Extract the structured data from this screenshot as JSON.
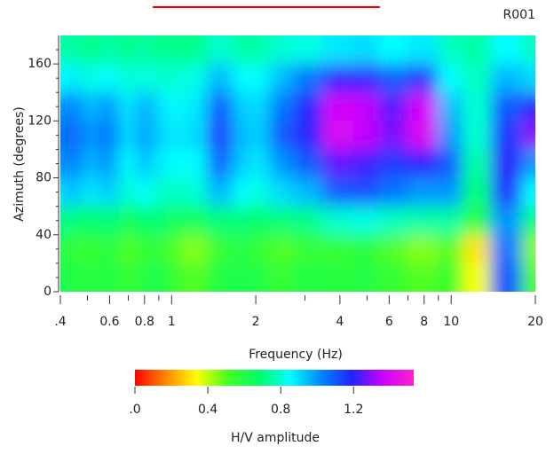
{
  "chart_data": {
    "type": "heatmap",
    "tag": "R001",
    "xlabel": "Frequency (Hz)",
    "ylabel": "Azimuth (degrees)",
    "colorbar_label": "H/V amplitude",
    "xscale": "log",
    "xlim": [
      0.4,
      20
    ],
    "ylim": [
      0,
      180
    ],
    "xticks": [
      {
        "value": 0.4,
        "label": ".4"
      },
      0.6,
      0.8,
      1,
      2,
      4,
      6,
      8,
      10,
      20
    ],
    "xminorticks": [
      0.5,
      0.7,
      0.9,
      3,
      5,
      7,
      9,
      30
    ],
    "yticks": [
      0,
      40,
      80,
      120,
      160
    ],
    "yminorticks": [
      10,
      20,
      30,
      50,
      60,
      70,
      90,
      100,
      110,
      130,
      140,
      150,
      170
    ],
    "x": [
      0.4,
      0.45,
      0.5,
      0.6,
      0.7,
      0.8,
      0.9,
      1,
      1.2,
      1.5,
      1.8,
      2,
      2.5,
      3,
      4,
      5,
      6,
      8,
      10,
      12,
      16,
      20
    ],
    "y": [
      10,
      30,
      50,
      70,
      90,
      110,
      130,
      150,
      170
    ],
    "z": [
      [
        0.62,
        0.6,
        0.58,
        0.6,
        0.55,
        0.6,
        0.62,
        0.55,
        0.5,
        0.6,
        0.62,
        0.6,
        0.55,
        0.6,
        0.58,
        0.6,
        0.55,
        0.5,
        0.55,
        0.35,
        1.1,
        0.5
      ],
      [
        0.6,
        0.55,
        0.55,
        0.58,
        0.5,
        0.55,
        0.58,
        0.5,
        0.45,
        0.55,
        0.6,
        0.55,
        0.5,
        0.55,
        0.55,
        0.58,
        0.5,
        0.45,
        0.5,
        0.3,
        1.05,
        0.45
      ],
      [
        0.72,
        0.7,
        0.68,
        0.7,
        0.65,
        0.68,
        0.7,
        0.65,
        0.65,
        0.7,
        0.7,
        0.68,
        0.7,
        0.72,
        0.8,
        0.82,
        0.78,
        0.75,
        0.75,
        0.6,
        1.0,
        0.7
      ],
      [
        0.9,
        0.95,
        0.88,
        0.92,
        0.8,
        0.85,
        0.8,
        0.78,
        0.8,
        0.95,
        0.85,
        0.82,
        0.9,
        0.95,
        1.1,
        1.12,
        1.05,
        1.0,
        1.0,
        0.7,
        1.15,
        0.85
      ],
      [
        1.0,
        1.05,
        0.95,
        1.0,
        0.85,
        0.95,
        0.88,
        0.85,
        0.85,
        1.08,
        0.92,
        0.88,
        1.0,
        1.1,
        1.25,
        1.22,
        1.15,
        1.2,
        1.1,
        0.75,
        1.2,
        1.0
      ],
      [
        1.05,
        1.1,
        1.0,
        1.05,
        0.9,
        1.0,
        0.92,
        0.88,
        0.9,
        1.15,
        0.95,
        0.92,
        1.1,
        1.2,
        1.4,
        1.35,
        1.28,
        1.4,
        1.0,
        0.8,
        1.15,
        1.3
      ],
      [
        1.0,
        1.05,
        0.95,
        1.0,
        0.88,
        0.98,
        0.9,
        0.85,
        0.88,
        1.1,
        0.92,
        0.9,
        1.05,
        1.18,
        1.38,
        1.35,
        1.25,
        1.38,
        0.95,
        0.8,
        1.1,
        1.2
      ],
      [
        0.85,
        0.88,
        0.82,
        0.85,
        0.8,
        0.82,
        0.8,
        0.8,
        0.82,
        0.95,
        0.85,
        0.85,
        0.95,
        1.05,
        1.2,
        1.2,
        1.1,
        1.15,
        0.85,
        0.78,
        0.95,
        0.9
      ],
      [
        0.75,
        0.75,
        0.72,
        0.75,
        0.72,
        0.75,
        0.72,
        0.72,
        0.72,
        0.8,
        0.75,
        0.75,
        0.8,
        0.82,
        0.88,
        0.9,
        0.85,
        0.88,
        0.78,
        0.75,
        0.85,
        0.78
      ]
    ],
    "clim": [
      0,
      1.53
    ],
    "cticks": [
      {
        "value": 0,
        "label": ".0"
      },
      0.4,
      0.8,
      1.2
    ],
    "colormap": [
      "#ff0000",
      "#ff8800",
      "#ffff00",
      "#44ff22",
      "#00ff66",
      "#00ffff",
      "#0088ff",
      "#2222ff",
      "#cc00ff",
      "#ff22cc"
    ]
  }
}
